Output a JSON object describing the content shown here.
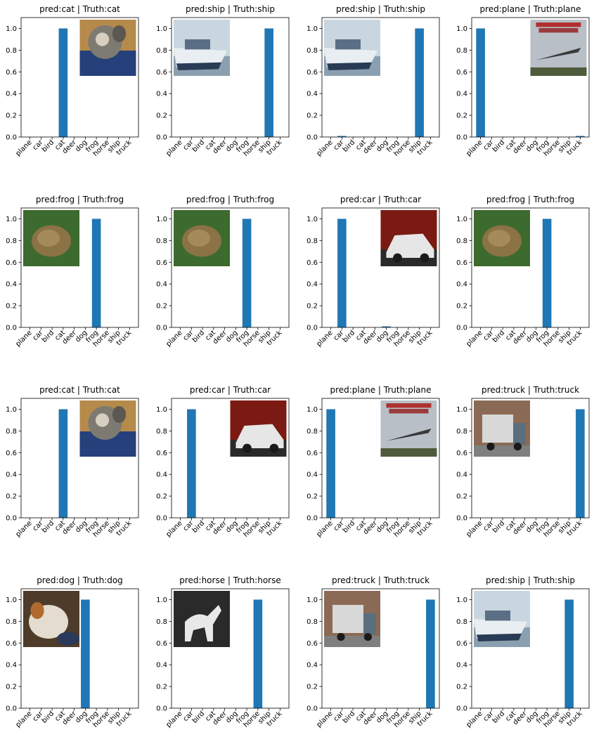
{
  "colors": {
    "bar": "#1f77b4",
    "axis": "#000000",
    "background": "#ffffff"
  },
  "y_ticks": [
    "0.0",
    "0.2",
    "0.4",
    "0.6",
    "0.8",
    "1.0"
  ],
  "chart_data": [
    {
      "type": "bar",
      "title": "pred:cat | Truth:cat",
      "categories": [
        "plane",
        "car",
        "bird",
        "cat",
        "deer",
        "dog",
        "frog",
        "horse",
        "ship",
        "truck"
      ],
      "values": [
        0,
        0,
        0,
        1.0,
        0,
        0,
        0,
        0,
        0,
        0
      ],
      "ylim": [
        0,
        1.1
      ],
      "thumbnail": "cat",
      "thumbnail_side": "right"
    },
    {
      "type": "bar",
      "title": "pred:ship | Truth:ship",
      "categories": [
        "plane",
        "car",
        "bird",
        "cat",
        "deer",
        "dog",
        "frog",
        "horse",
        "ship",
        "truck"
      ],
      "values": [
        0,
        0,
        0,
        0,
        0,
        0,
        0,
        0,
        1.0,
        0
      ],
      "ylim": [
        0,
        1.1
      ],
      "thumbnail": "ship",
      "thumbnail_side": "left"
    },
    {
      "type": "bar",
      "title": "pred:ship | Truth:ship",
      "categories": [
        "plane",
        "car",
        "bird",
        "cat",
        "deer",
        "dog",
        "frog",
        "horse",
        "ship",
        "truck"
      ],
      "values": [
        0,
        0.004,
        0,
        0,
        0,
        0,
        0,
        0,
        1.0,
        0
      ],
      "ylim": [
        0,
        1.1
      ],
      "thumbnail": "ship",
      "thumbnail_side": "left"
    },
    {
      "type": "bar",
      "title": "pred:plane | Truth:plane",
      "categories": [
        "plane",
        "car",
        "bird",
        "cat",
        "deer",
        "dog",
        "frog",
        "horse",
        "ship",
        "truck"
      ],
      "values": [
        1.0,
        0,
        0,
        0,
        0,
        0,
        0,
        0,
        0,
        0.004
      ],
      "ylim": [
        0,
        1.1
      ],
      "thumbnail": "plane",
      "thumbnail_side": "right"
    },
    {
      "type": "bar",
      "title": "pred:frog | Truth:frog",
      "categories": [
        "plane",
        "car",
        "bird",
        "cat",
        "deer",
        "dog",
        "frog",
        "horse",
        "ship",
        "truck"
      ],
      "values": [
        0,
        0,
        0,
        0,
        0,
        0,
        1.0,
        0,
        0,
        0
      ],
      "ylim": [
        0,
        1.1
      ],
      "thumbnail": "frog",
      "thumbnail_side": "left"
    },
    {
      "type": "bar",
      "title": "pred:frog | Truth:frog",
      "categories": [
        "plane",
        "car",
        "bird",
        "cat",
        "deer",
        "dog",
        "frog",
        "horse",
        "ship",
        "truck"
      ],
      "values": [
        0,
        0,
        0,
        0,
        0,
        0,
        1.0,
        0,
        0,
        0
      ],
      "ylim": [
        0,
        1.1
      ],
      "thumbnail": "frog",
      "thumbnail_side": "left"
    },
    {
      "type": "bar",
      "title": "pred:car | Truth:car",
      "categories": [
        "plane",
        "car",
        "bird",
        "cat",
        "deer",
        "dog",
        "frog",
        "horse",
        "ship",
        "truck"
      ],
      "values": [
        0,
        1.0,
        0,
        0,
        0,
        0.004,
        0,
        0,
        0,
        0
      ],
      "ylim": [
        0,
        1.1
      ],
      "thumbnail": "car",
      "thumbnail_side": "right"
    },
    {
      "type": "bar",
      "title": "pred:frog | Truth:frog",
      "categories": [
        "plane",
        "car",
        "bird",
        "cat",
        "deer",
        "dog",
        "frog",
        "horse",
        "ship",
        "truck"
      ],
      "values": [
        0,
        0,
        0,
        0,
        0,
        0,
        1.0,
        0,
        0,
        0
      ],
      "ylim": [
        0,
        1.1
      ],
      "thumbnail": "frog",
      "thumbnail_side": "left"
    },
    {
      "type": "bar",
      "title": "pred:cat | Truth:cat",
      "categories": [
        "plane",
        "car",
        "bird",
        "cat",
        "deer",
        "dog",
        "frog",
        "horse",
        "ship",
        "truck"
      ],
      "values": [
        0,
        0,
        0,
        1.0,
        0,
        0,
        0,
        0,
        0,
        0
      ],
      "ylim": [
        0,
        1.1
      ],
      "thumbnail": "cat",
      "thumbnail_side": "right"
    },
    {
      "type": "bar",
      "title": "pred:car | Truth:car",
      "categories": [
        "plane",
        "car",
        "bird",
        "cat",
        "deer",
        "dog",
        "frog",
        "horse",
        "ship",
        "truck"
      ],
      "values": [
        0,
        1.0,
        0,
        0,
        0,
        0,
        0,
        0,
        0,
        0
      ],
      "ylim": [
        0,
        1.1
      ],
      "thumbnail": "car",
      "thumbnail_side": "right"
    },
    {
      "type": "bar",
      "title": "pred:plane | Truth:plane",
      "categories": [
        "plane",
        "car",
        "bird",
        "cat",
        "deer",
        "dog",
        "frog",
        "horse",
        "ship",
        "truck"
      ],
      "values": [
        1.0,
        0,
        0,
        0,
        0,
        0,
        0,
        0,
        0,
        0
      ],
      "ylim": [
        0,
        1.1
      ],
      "thumbnail": "plane",
      "thumbnail_side": "right"
    },
    {
      "type": "bar",
      "title": "pred:truck | Truth:truck",
      "categories": [
        "plane",
        "car",
        "bird",
        "cat",
        "deer",
        "dog",
        "frog",
        "horse",
        "ship",
        "truck"
      ],
      "values": [
        0,
        0,
        0,
        0,
        0,
        0,
        0,
        0,
        0,
        1.0
      ],
      "ylim": [
        0,
        1.1
      ],
      "thumbnail": "truck",
      "thumbnail_side": "left"
    },
    {
      "type": "bar",
      "title": "pred:dog | Truth:dog",
      "categories": [
        "plane",
        "car",
        "bird",
        "cat",
        "deer",
        "dog",
        "frog",
        "horse",
        "ship",
        "truck"
      ],
      "values": [
        0,
        0,
        0,
        0,
        0,
        1.0,
        0,
        0,
        0,
        0
      ],
      "ylim": [
        0,
        1.1
      ],
      "thumbnail": "dog",
      "thumbnail_side": "left"
    },
    {
      "type": "bar",
      "title": "pred:horse | Truth:horse",
      "categories": [
        "plane",
        "car",
        "bird",
        "cat",
        "deer",
        "dog",
        "frog",
        "horse",
        "ship",
        "truck"
      ],
      "values": [
        0,
        0,
        0,
        0,
        0,
        0,
        0,
        1.0,
        0,
        0
      ],
      "ylim": [
        0,
        1.1
      ],
      "thumbnail": "horse",
      "thumbnail_side": "left"
    },
    {
      "type": "bar",
      "title": "pred:truck | Truth:truck",
      "categories": [
        "plane",
        "car",
        "bird",
        "cat",
        "deer",
        "dog",
        "frog",
        "horse",
        "ship",
        "truck"
      ],
      "values": [
        0,
        0,
        0,
        0,
        0,
        0,
        0,
        0,
        0,
        1.0
      ],
      "ylim": [
        0,
        1.1
      ],
      "thumbnail": "truck",
      "thumbnail_side": "left"
    },
    {
      "type": "bar",
      "title": "pred:ship | Truth:ship",
      "categories": [
        "plane",
        "car",
        "bird",
        "cat",
        "deer",
        "dog",
        "frog",
        "horse",
        "ship",
        "truck"
      ],
      "values": [
        0,
        0,
        0,
        0,
        0,
        0,
        0,
        0,
        1.0,
        0
      ],
      "ylim": [
        0,
        1.1
      ],
      "thumbnail": "ship",
      "thumbnail_side": "left"
    }
  ]
}
